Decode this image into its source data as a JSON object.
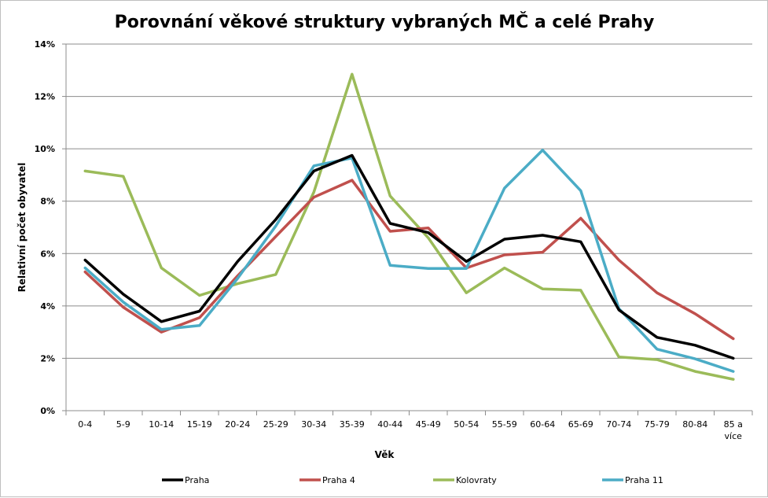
{
  "chart_data": {
    "type": "line",
    "title": "Porovnání věkové struktury vybraných MČ a celé Prahy",
    "xlabel": "Věk",
    "ylabel": "Relativní počet obyvatel",
    "categories": [
      "0-4",
      "5-9",
      "10-14",
      "15-19",
      "20-24",
      "25-29",
      "30-34",
      "35-39",
      "40-44",
      "45-49",
      "50-54",
      "55-59",
      "60-64",
      "65-69",
      "70-74",
      "75-79",
      "80-84",
      "85 a více"
    ],
    "ylim": [
      0,
      14
    ],
    "yticks": [
      0,
      2,
      4,
      6,
      8,
      10,
      12,
      14
    ],
    "yticklabels": [
      "0%",
      "2%",
      "4%",
      "6%",
      "8%",
      "10%",
      "12%",
      "14%"
    ],
    "grid": "horizontal",
    "legend_position": "bottom",
    "series": [
      {
        "name": "Praha",
        "color": "#000000",
        "values": [
          5.75,
          4.45,
          3.4,
          3.8,
          5.7,
          7.3,
          9.15,
          9.75,
          7.15,
          6.8,
          5.7,
          6.55,
          6.7,
          6.45,
          3.85,
          2.8,
          2.5,
          2.0
        ]
      },
      {
        "name": "Praha 4",
        "color": "#c0504d",
        "values": [
          5.3,
          3.95,
          3.0,
          3.55,
          5.15,
          6.65,
          8.15,
          8.8,
          6.85,
          6.98,
          5.45,
          5.95,
          6.05,
          7.35,
          5.75,
          4.5,
          3.7,
          2.75
        ]
      },
      {
        "name": "Kolovraty",
        "color": "#9bbb59",
        "values": [
          9.15,
          8.95,
          5.45,
          4.4,
          4.85,
          5.2,
          8.35,
          12.85,
          8.2,
          6.6,
          4.5,
          5.45,
          4.65,
          4.6,
          2.05,
          1.95,
          1.5,
          1.2
        ]
      },
      {
        "name": "Praha 11",
        "color": "#4bacc6",
        "values": [
          5.45,
          4.15,
          3.1,
          3.25,
          5.05,
          7.05,
          9.35,
          9.65,
          5.55,
          5.43,
          5.43,
          8.5,
          9.95,
          8.4,
          3.9,
          2.35,
          1.98,
          1.5
        ]
      }
    ]
  }
}
